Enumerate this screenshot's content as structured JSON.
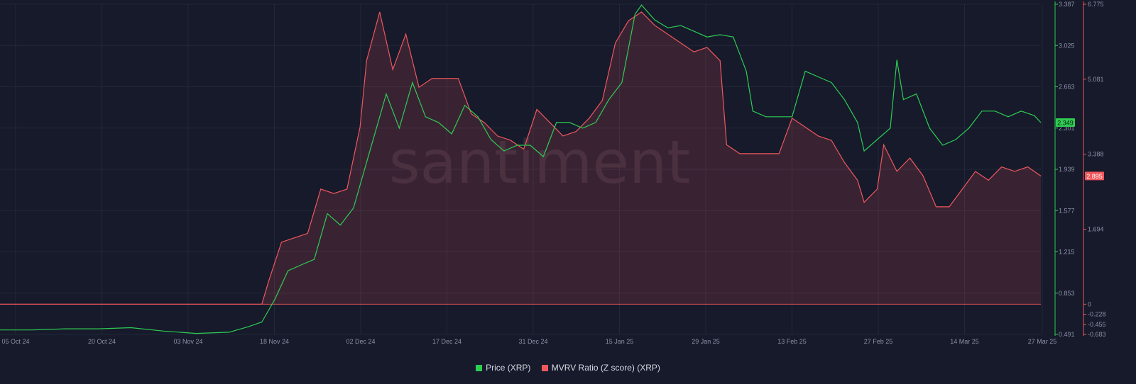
{
  "colors": {
    "price": "#2ecc52",
    "mvrv": "#f0575c",
    "background": "#161a2b",
    "grid": "#23283a",
    "tick": "#8b90a4"
  },
  "watermark": "santiment",
  "legend": {
    "price_label": "Price (XRP)",
    "mvrv_label": "MVRV Ratio (Z score) (XRP)"
  },
  "chart_data": {
    "type": "line",
    "x": {
      "start": "05 Oct 24",
      "end": "27 Mar 25",
      "tick_labels": [
        "05 Oct 24",
        "20 Oct 24",
        "03 Nov 24",
        "18 Nov 24",
        "02 Dec 24",
        "17 Dec 24",
        "31 Dec 24",
        "15 Jan 25",
        "29 Jan 25",
        "13 Feb 25",
        "27 Feb 25",
        "14 Mar 25",
        "27 Mar 25"
      ]
    },
    "axes": {
      "price": {
        "range": [
          0.491,
          3.387
        ],
        "tick_labels": [
          "3.387",
          "3.025",
          "2.663",
          "2.301",
          "1.939",
          "1.577",
          "1.215",
          "0.853",
          "0.491"
        ]
      },
      "mvrv": {
        "range": [
          -0.683,
          6.775
        ],
        "tick_labels": [
          "6.775",
          "5.081",
          "3.388",
          "1.694",
          "0",
          "-0.228",
          "-0.455",
          "-0.683"
        ],
        "tick_values": [
          6.775,
          5.081,
          3.388,
          1.694,
          0,
          -0.228,
          -0.455,
          -0.683
        ]
      }
    },
    "current": {
      "price": "2.349",
      "mvrv": "2.895"
    },
    "series": [
      {
        "name": "Price (XRP)",
        "axis": "price",
        "points": [
          [
            0,
            0.53
          ],
          [
            5,
            0.53
          ],
          [
            10,
            0.54
          ],
          [
            15,
            0.54
          ],
          [
            20,
            0.55
          ],
          [
            25,
            0.52
          ],
          [
            30,
            0.5
          ],
          [
            35,
            0.51
          ],
          [
            38,
            0.56
          ],
          [
            40,
            0.6
          ],
          [
            42,
            0.8
          ],
          [
            44,
            1.05
          ],
          [
            46,
            1.1
          ],
          [
            48,
            1.15
          ],
          [
            50,
            1.55
          ],
          [
            52,
            1.45
          ],
          [
            54,
            1.6
          ],
          [
            56,
            2.0
          ],
          [
            58,
            2.4
          ],
          [
            59,
            2.6
          ],
          [
            61,
            2.3
          ],
          [
            63,
            2.7
          ],
          [
            65,
            2.4
          ],
          [
            67,
            2.35
          ],
          [
            69,
            2.25
          ],
          [
            71,
            2.5
          ],
          [
            73,
            2.4
          ],
          [
            75,
            2.2
          ],
          [
            77,
            2.1
          ],
          [
            79,
            2.15
          ],
          [
            81,
            2.15
          ],
          [
            83,
            2.05
          ],
          [
            85,
            2.35
          ],
          [
            87,
            2.35
          ],
          [
            89,
            2.3
          ],
          [
            91,
            2.35
          ],
          [
            93,
            2.55
          ],
          [
            95,
            2.7
          ],
          [
            97,
            3.3
          ],
          [
            98,
            3.38
          ],
          [
            100,
            3.25
          ],
          [
            102,
            3.18
          ],
          [
            104,
            3.2
          ],
          [
            106,
            3.15
          ],
          [
            108,
            3.1
          ],
          [
            110,
            3.12
          ],
          [
            112,
            3.1
          ],
          [
            114,
            2.8
          ],
          [
            115,
            2.45
          ],
          [
            117,
            2.4
          ],
          [
            119,
            2.4
          ],
          [
            121,
            2.4
          ],
          [
            123,
            2.8
          ],
          [
            125,
            2.75
          ],
          [
            127,
            2.7
          ],
          [
            129,
            2.55
          ],
          [
            131,
            2.35
          ],
          [
            132,
            2.1
          ],
          [
            134,
            2.2
          ],
          [
            136,
            2.3
          ],
          [
            137,
            2.9
          ],
          [
            138,
            2.55
          ],
          [
            140,
            2.6
          ],
          [
            142,
            2.3
          ],
          [
            144,
            2.15
          ],
          [
            146,
            2.2
          ],
          [
            148,
            2.3
          ],
          [
            150,
            2.45
          ],
          [
            152,
            2.45
          ],
          [
            154,
            2.4
          ],
          [
            156,
            2.45
          ],
          [
            158,
            2.41
          ],
          [
            159,
            2.349
          ]
        ]
      },
      {
        "name": "MVRV Ratio (Z score) (XRP)",
        "axis": "mvrv",
        "points": [
          [
            0,
            0.0
          ],
          [
            40,
            0.0
          ],
          [
            41,
            0.5
          ],
          [
            43,
            1.4
          ],
          [
            45,
            1.5
          ],
          [
            47,
            1.6
          ],
          [
            49,
            2.6
          ],
          [
            51,
            2.5
          ],
          [
            53,
            2.6
          ],
          [
            55,
            4.0
          ],
          [
            56,
            5.5
          ],
          [
            58,
            6.6
          ],
          [
            60,
            5.3
          ],
          [
            62,
            6.1
          ],
          [
            64,
            4.9
          ],
          [
            66,
            5.1
          ],
          [
            68,
            5.1
          ],
          [
            70,
            5.1
          ],
          [
            72,
            4.3
          ],
          [
            74,
            4.1
          ],
          [
            76,
            3.8
          ],
          [
            78,
            3.7
          ],
          [
            80,
            3.5
          ],
          [
            82,
            4.4
          ],
          [
            84,
            4.1
          ],
          [
            86,
            3.8
          ],
          [
            88,
            3.9
          ],
          [
            90,
            4.2
          ],
          [
            92,
            4.6
          ],
          [
            94,
            5.9
          ],
          [
            96,
            6.4
          ],
          [
            98,
            6.6
          ],
          [
            100,
            6.3
          ],
          [
            102,
            6.1
          ],
          [
            104,
            5.9
          ],
          [
            106,
            5.7
          ],
          [
            108,
            5.8
          ],
          [
            110,
            5.5
          ],
          [
            111,
            3.6
          ],
          [
            113,
            3.4
          ],
          [
            115,
            3.4
          ],
          [
            117,
            3.4
          ],
          [
            119,
            3.4
          ],
          [
            121,
            4.2
          ],
          [
            123,
            4.0
          ],
          [
            125,
            3.8
          ],
          [
            127,
            3.7
          ],
          [
            129,
            3.2
          ],
          [
            131,
            2.8
          ],
          [
            132,
            2.3
          ],
          [
            134,
            2.6
          ],
          [
            135,
            3.6
          ],
          [
            137,
            3.0
          ],
          [
            139,
            3.3
          ],
          [
            141,
            2.9
          ],
          [
            143,
            2.2
          ],
          [
            145,
            2.2
          ],
          [
            147,
            2.6
          ],
          [
            149,
            3.0
          ],
          [
            151,
            2.8
          ],
          [
            153,
            3.1
          ],
          [
            155,
            3.0
          ],
          [
            157,
            3.1
          ],
          [
            159,
            2.895
          ]
        ]
      }
    ],
    "grid": true,
    "legend_position": "bottom-center"
  }
}
